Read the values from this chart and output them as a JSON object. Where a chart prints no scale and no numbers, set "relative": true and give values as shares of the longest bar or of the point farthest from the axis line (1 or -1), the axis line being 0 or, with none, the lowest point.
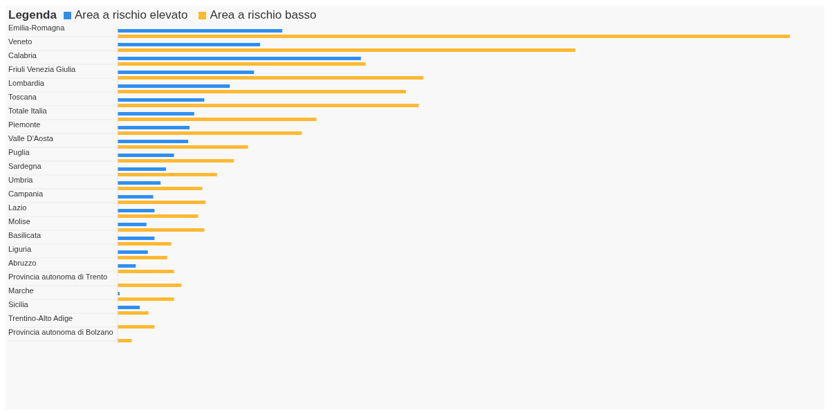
{
  "chart_data": {
    "type": "bar",
    "orientation": "horizontal",
    "relative": true,
    "legend_title": "Legenda",
    "legend": "top left",
    "categories": [
      "Emilia-Romagna",
      "Veneto",
      "Calabria",
      "Friuli Venezia Giulia",
      "Lombardia",
      "Toscana",
      "Totale Italia",
      "Piemonte",
      "Valle D'Aosta",
      "Puglia",
      "Sardegna",
      "Umbria",
      "Campania",
      "Lazio",
      "Molise",
      "Basilicata",
      "Liguria",
      "Abruzzo",
      "Provincia autonoma di Trento",
      "Marche",
      "Sicilia",
      "Trentino-Alto Adige",
      "Provincia autonoma di Bolzano"
    ],
    "series": [
      {
        "name": "Area a rischio elevato",
        "color": "#2f8ff0",
        "values": [
          0.245,
          0.212,
          0.362,
          0.203,
          0.167,
          0.129,
          0.114,
          0.107,
          0.105,
          0.084,
          0.072,
          0.064,
          0.053,
          0.055,
          0.043,
          0.055,
          0.045,
          0.027,
          0,
          0.003,
          0.033,
          0,
          0
        ]
      },
      {
        "name": "Area a rischio basso",
        "color": "#fdb933",
        "values": [
          1,
          0.681,
          0.369,
          0.455,
          0.429,
          0.448,
          0.296,
          0.274,
          0.194,
          0.173,
          0.148,
          0.126,
          0.131,
          0.12,
          0.129,
          0.08,
          0.074,
          0.084,
          0.095,
          0.084,
          0.046,
          0.055,
          0.021
        ]
      }
    ]
  }
}
